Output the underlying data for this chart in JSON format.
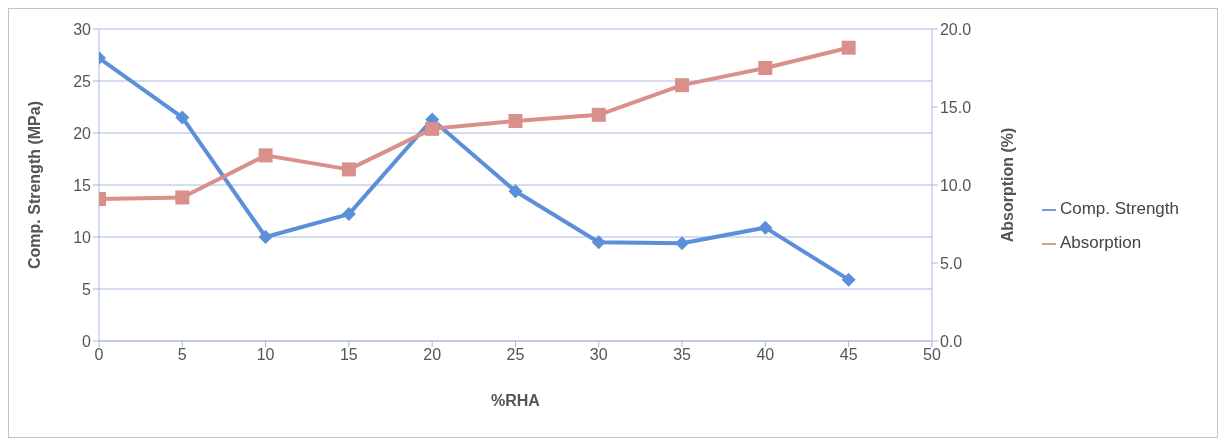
{
  "chart_data": {
    "type": "line",
    "xlabel": "%RHA",
    "ylabel": "Comp. Strength (MPa)",
    "y2label": "Absorption (%)",
    "x": [
      0,
      5,
      10,
      15,
      20,
      25,
      30,
      35,
      40,
      45
    ],
    "series": [
      {
        "name": "Comp. Strength",
        "color": "#5b8fd9",
        "marker": "diamond",
        "values": [
          27.2,
          21.5,
          10.0,
          12.2,
          21.3,
          14.4,
          9.5,
          9.4,
          10.9,
          5.9
        ]
      },
      {
        "name": "Absorption",
        "color": "#d9908a",
        "marker": "square",
        "axis": "y2",
        "values": [
          9.1,
          9.2,
          11.9,
          11.0,
          13.6,
          14.1,
          14.5,
          16.4,
          17.5,
          18.8
        ]
      }
    ],
    "xlim": [
      0,
      50
    ],
    "xticks": [
      0,
      5,
      10,
      15,
      20,
      25,
      30,
      35,
      40,
      45,
      50
    ],
    "ylim": [
      0,
      30
    ],
    "yticks": [
      0,
      5,
      10,
      15,
      20,
      25,
      30
    ],
    "y2lim": [
      0,
      20
    ],
    "y2ticks": [
      {
        "value": 0,
        "label": "0.0"
      },
      {
        "value": 5,
        "label": "5.0"
      },
      {
        "value": 10,
        "label": "10.0"
      },
      {
        "value": 15,
        "label": "15.0"
      },
      {
        "value": 20,
        "label": "20.0"
      }
    ],
    "grid": "y",
    "legend": "right"
  }
}
